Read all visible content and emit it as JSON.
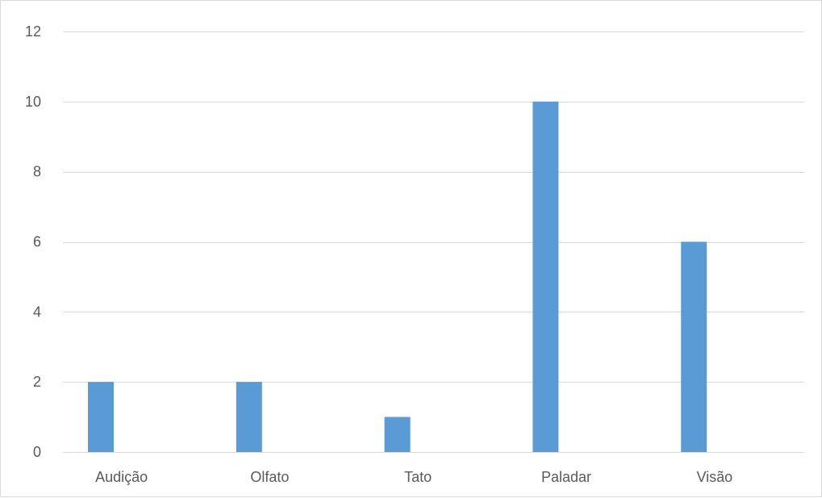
{
  "chart_data": {
    "type": "bar",
    "title": "",
    "xlabel": "",
    "ylabel": "",
    "categories": [
      "Audição",
      "Olfato",
      "Tato",
      "Paladar",
      "Visão"
    ],
    "series": [
      {
        "values": [
          2,
          2,
          1,
          10,
          6
        ],
        "color": "#5b9bd5"
      }
    ],
    "ylim": [
      0,
      12
    ],
    "yticks": [
      "0",
      "2",
      "4",
      "6",
      "8",
      "10",
      "12"
    ],
    "grid": true,
    "legend": "none"
  }
}
